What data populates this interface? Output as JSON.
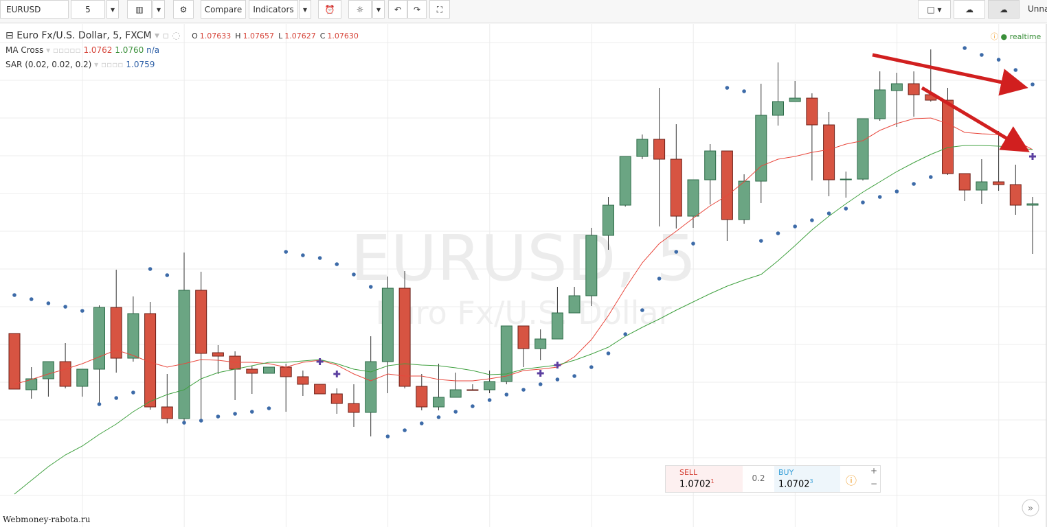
{
  "toolbar": {
    "symbol": "EURUSD",
    "interval": "5",
    "compare": "Compare",
    "indicators": "Indicators",
    "layout_name": "Unnam"
  },
  "legend": {
    "title": "Euro Fx/U.S. Dollar, 5, FXCM",
    "ohlc": [
      {
        "label": "O",
        "value": "1.07633"
      },
      {
        "label": "H",
        "value": "1.07657"
      },
      {
        "label": "L",
        "value": "1.07627"
      },
      {
        "label": "C",
        "value": "1.07630"
      }
    ],
    "ma_cross": {
      "name": "MA Cross",
      "values": [
        "1.0762",
        "1.0760",
        "n/a"
      ]
    },
    "sar": {
      "name": "SAR (0.02, 0.02, 0.2)",
      "value": "1.0759"
    },
    "status": "realtime"
  },
  "watermark": {
    "symbol": "EURUSD, 5",
    "description": "Euro Fx/U.S. Dollar"
  },
  "trade_panel": {
    "sell_label": "SELL",
    "sell_price": "1.0702",
    "sell_pip": "1",
    "spread": "0.2",
    "buy_label": "BUY",
    "buy_price": "1.0702",
    "buy_pip": "3"
  },
  "footer": "Webmoney-rabota.ru",
  "chart_data": {
    "type": "candlestick",
    "ylim": [
      1.07232,
      1.08
    ],
    "up_color": "#6ba583",
    "down_color": "#d75442",
    "open": [
      1.07514,
      1.07432,
      1.07448,
      1.07473,
      1.07437,
      1.07462,
      1.07552,
      1.07478,
      1.07543,
      1.07407,
      1.0739,
      1.07577,
      1.07486,
      1.07481,
      1.07462,
      1.07456,
      1.07465,
      1.07451,
      1.0744,
      1.07426,
      1.07412,
      1.07399,
      1.07473,
      1.0758,
      1.07437,
      1.07407,
      1.07421,
      1.07432,
      1.07432,
      1.07444,
      1.07525,
      1.07492,
      1.07506,
      1.07544,
      1.07569,
      1.07657,
      1.07701,
      1.07772,
      1.07797,
      1.07768,
      1.07685,
      1.07738,
      1.0778,
      1.0768,
      1.07736,
      1.07832,
      1.07852,
      1.07857,
      1.07818,
      1.07739,
      1.07739,
      1.07827,
      1.07868,
      1.07878,
      1.07862,
      1.07854,
      1.07747,
      1.07723,
      1.07735,
      1.07731,
      1.07701
    ],
    "high": [
      1.07514,
      1.07465,
      1.07473,
      1.075,
      1.07462,
      1.07555,
      1.07607,
      1.07568,
      1.0756,
      1.07455,
      1.07632,
      1.07604,
      1.07497,
      1.07488,
      1.07467,
      1.07465,
      1.0747,
      1.0746,
      1.0744,
      1.07434,
      1.0744,
      1.0751,
      1.07597,
      1.07605,
      1.07455,
      1.0747,
      1.07457,
      1.0744,
      1.0746,
      1.07525,
      1.07525,
      1.0752,
      1.07582,
      1.07582,
      1.07668,
      1.07713,
      1.07772,
      1.07804,
      1.07872,
      1.07819,
      1.07738,
      1.0779,
      1.0778,
      1.07746,
      1.07878,
      1.07909,
      1.07882,
      1.07864,
      1.07837,
      1.0775,
      1.07827,
      1.07896,
      1.07894,
      1.07896,
      1.07928,
      1.07872,
      1.07747,
      1.07768,
      1.07809,
      1.0776,
      1.07713
    ],
    "low": [
      1.07433,
      1.07419,
      1.07422,
      1.07434,
      1.07422,
      1.0741,
      1.07457,
      1.07473,
      1.07403,
      1.07383,
      1.07385,
      1.07388,
      1.07455,
      1.07417,
      1.07426,
      1.07456,
      1.074,
      1.07423,
      1.07426,
      1.07397,
      1.07378,
      1.07364,
      1.07427,
      1.07434,
      1.07402,
      1.07402,
      1.07421,
      1.07431,
      1.07427,
      1.0744,
      1.07465,
      1.07475,
      1.07506,
      1.07544,
      1.07554,
      1.07636,
      1.07699,
      1.07768,
      1.0767,
      1.07667,
      1.07668,
      1.07702,
      1.07649,
      1.07674,
      1.07704,
      1.07817,
      1.07852,
      1.07737,
      1.07714,
      1.07712,
      1.07737,
      1.07824,
      1.07815,
      1.0783,
      1.07852,
      1.07745,
      1.07707,
      1.07703,
      1.07722,
      1.07687,
      1.0763
    ],
    "close": [
      1.07433,
      1.07448,
      1.07473,
      1.07437,
      1.07462,
      1.07552,
      1.07478,
      1.07543,
      1.07407,
      1.0739,
      1.07577,
      1.07485,
      1.07481,
      1.07462,
      1.07456,
      1.07465,
      1.07451,
      1.0744,
      1.07426,
      1.07412,
      1.07399,
      1.07473,
      1.0758,
      1.07437,
      1.07407,
      1.07421,
      1.07432,
      1.07431,
      1.07444,
      1.07525,
      1.07492,
      1.07506,
      1.07544,
      1.07569,
      1.07657,
      1.07701,
      1.07772,
      1.07797,
      1.07768,
      1.07685,
      1.07738,
      1.0778,
      1.0768,
      1.07736,
      1.07832,
      1.07852,
      1.07857,
      1.07818,
      1.07738,
      1.07739,
      1.07827,
      1.07869,
      1.07878,
      1.07862,
      1.07854,
      1.07747,
      1.07723,
      1.07735,
      1.07731,
      1.07701,
      1.07703
    ],
    "series": [
      {
        "color": "#e8473c",
        "style": "line",
        "values": [
          1.0744,
          1.07447,
          1.07455,
          1.07462,
          1.0747,
          1.0748,
          1.0749,
          1.07482,
          1.07472,
          1.07465,
          1.0747,
          1.07476,
          1.07475,
          1.07472,
          1.07472,
          1.0747,
          1.07465,
          1.07472,
          1.07475,
          1.07468,
          1.07455,
          1.07445,
          1.07455,
          1.07452,
          1.07452,
          1.07447,
          1.07445,
          1.07445,
          1.07448,
          1.07452,
          1.0746,
          1.07462,
          1.07465,
          1.0748,
          1.07505,
          1.0754,
          1.0758,
          1.07617,
          1.07645,
          1.07663,
          1.07682,
          1.077,
          1.07715,
          1.07735,
          1.07758,
          1.07768,
          1.07772,
          1.07778,
          1.07782,
          1.0779,
          1.07795,
          1.0781,
          1.0782,
          1.07827,
          1.07828,
          1.0782,
          1.07807,
          1.07805,
          1.07804,
          1.07795,
          1.07782
        ]
      },
      {
        "color": "#3fa03f",
        "style": "line",
        "values": [
          1.0728,
          1.073,
          1.0732,
          1.07337,
          1.0735,
          1.07367,
          1.07382,
          1.074,
          1.07415,
          1.07425,
          1.07432,
          1.07448,
          1.07457,
          1.07462,
          1.07467,
          1.07472,
          1.07472,
          1.07474,
          1.07476,
          1.0747,
          1.07462,
          1.07458,
          1.07467,
          1.0747,
          1.07468,
          1.07467,
          1.07464,
          1.0746,
          1.07454,
          1.07455,
          1.07462,
          1.07465,
          1.07468,
          1.07475,
          1.07484,
          1.07494,
          1.0751,
          1.07523,
          1.07535,
          1.07548,
          1.0756,
          1.07572,
          1.07583,
          1.07592,
          1.076,
          1.0762,
          1.07642,
          1.07665,
          1.07685,
          1.07703,
          1.0772,
          1.07735,
          1.0775,
          1.07763,
          1.07775,
          1.07785,
          1.07788,
          1.07788,
          1.07787,
          1.07785,
          1.07782
        ]
      },
      {
        "color": "#3d6ba8",
        "style": "dots",
        "values": [
          1.0757,
          1.07564,
          1.07558,
          1.07553,
          1.07547,
          1.07411,
          1.0742,
          1.07428,
          1.07608,
          1.07599,
          1.07384,
          1.07387,
          1.07393,
          1.07397,
          1.074,
          1.07405,
          1.07633,
          1.07628,
          1.07624,
          1.07615,
          1.076,
          1.07582,
          1.07364,
          1.07373,
          1.07383,
          1.07392,
          1.074,
          1.07408,
          1.07417,
          1.07425,
          1.07432,
          1.0744,
          1.07447,
          1.07452,
          1.07465,
          1.07485,
          1.07513,
          1.07548,
          1.07594,
          1.07633,
          1.07645,
          null,
          1.07872,
          1.07867,
          1.07649,
          1.0766,
          1.0767,
          1.07679,
          1.07689,
          1.07696,
          1.07705,
          1.07713,
          1.07721,
          1.07732,
          1.07742,
          null,
          1.0793,
          1.0792,
          1.07913,
          1.07898,
          1.07877
        ]
      },
      {
        "color": "#5b3fa0",
        "style": "cross",
        "values": [
          null,
          null,
          null,
          null,
          null,
          null,
          null,
          null,
          null,
          null,
          null,
          null,
          null,
          null,
          null,
          null,
          null,
          null,
          1.07473,
          1.07455,
          null,
          null,
          null,
          null,
          null,
          null,
          null,
          null,
          null,
          null,
          null,
          1.07456,
          1.07468,
          null,
          null,
          null,
          null,
          null,
          null,
          null,
          null,
          null,
          null,
          null,
          null,
          null,
          null,
          null,
          null,
          null,
          null,
          null,
          null,
          null,
          null,
          null,
          null,
          null,
          null,
          null,
          1.07772
        ]
      }
    ]
  }
}
